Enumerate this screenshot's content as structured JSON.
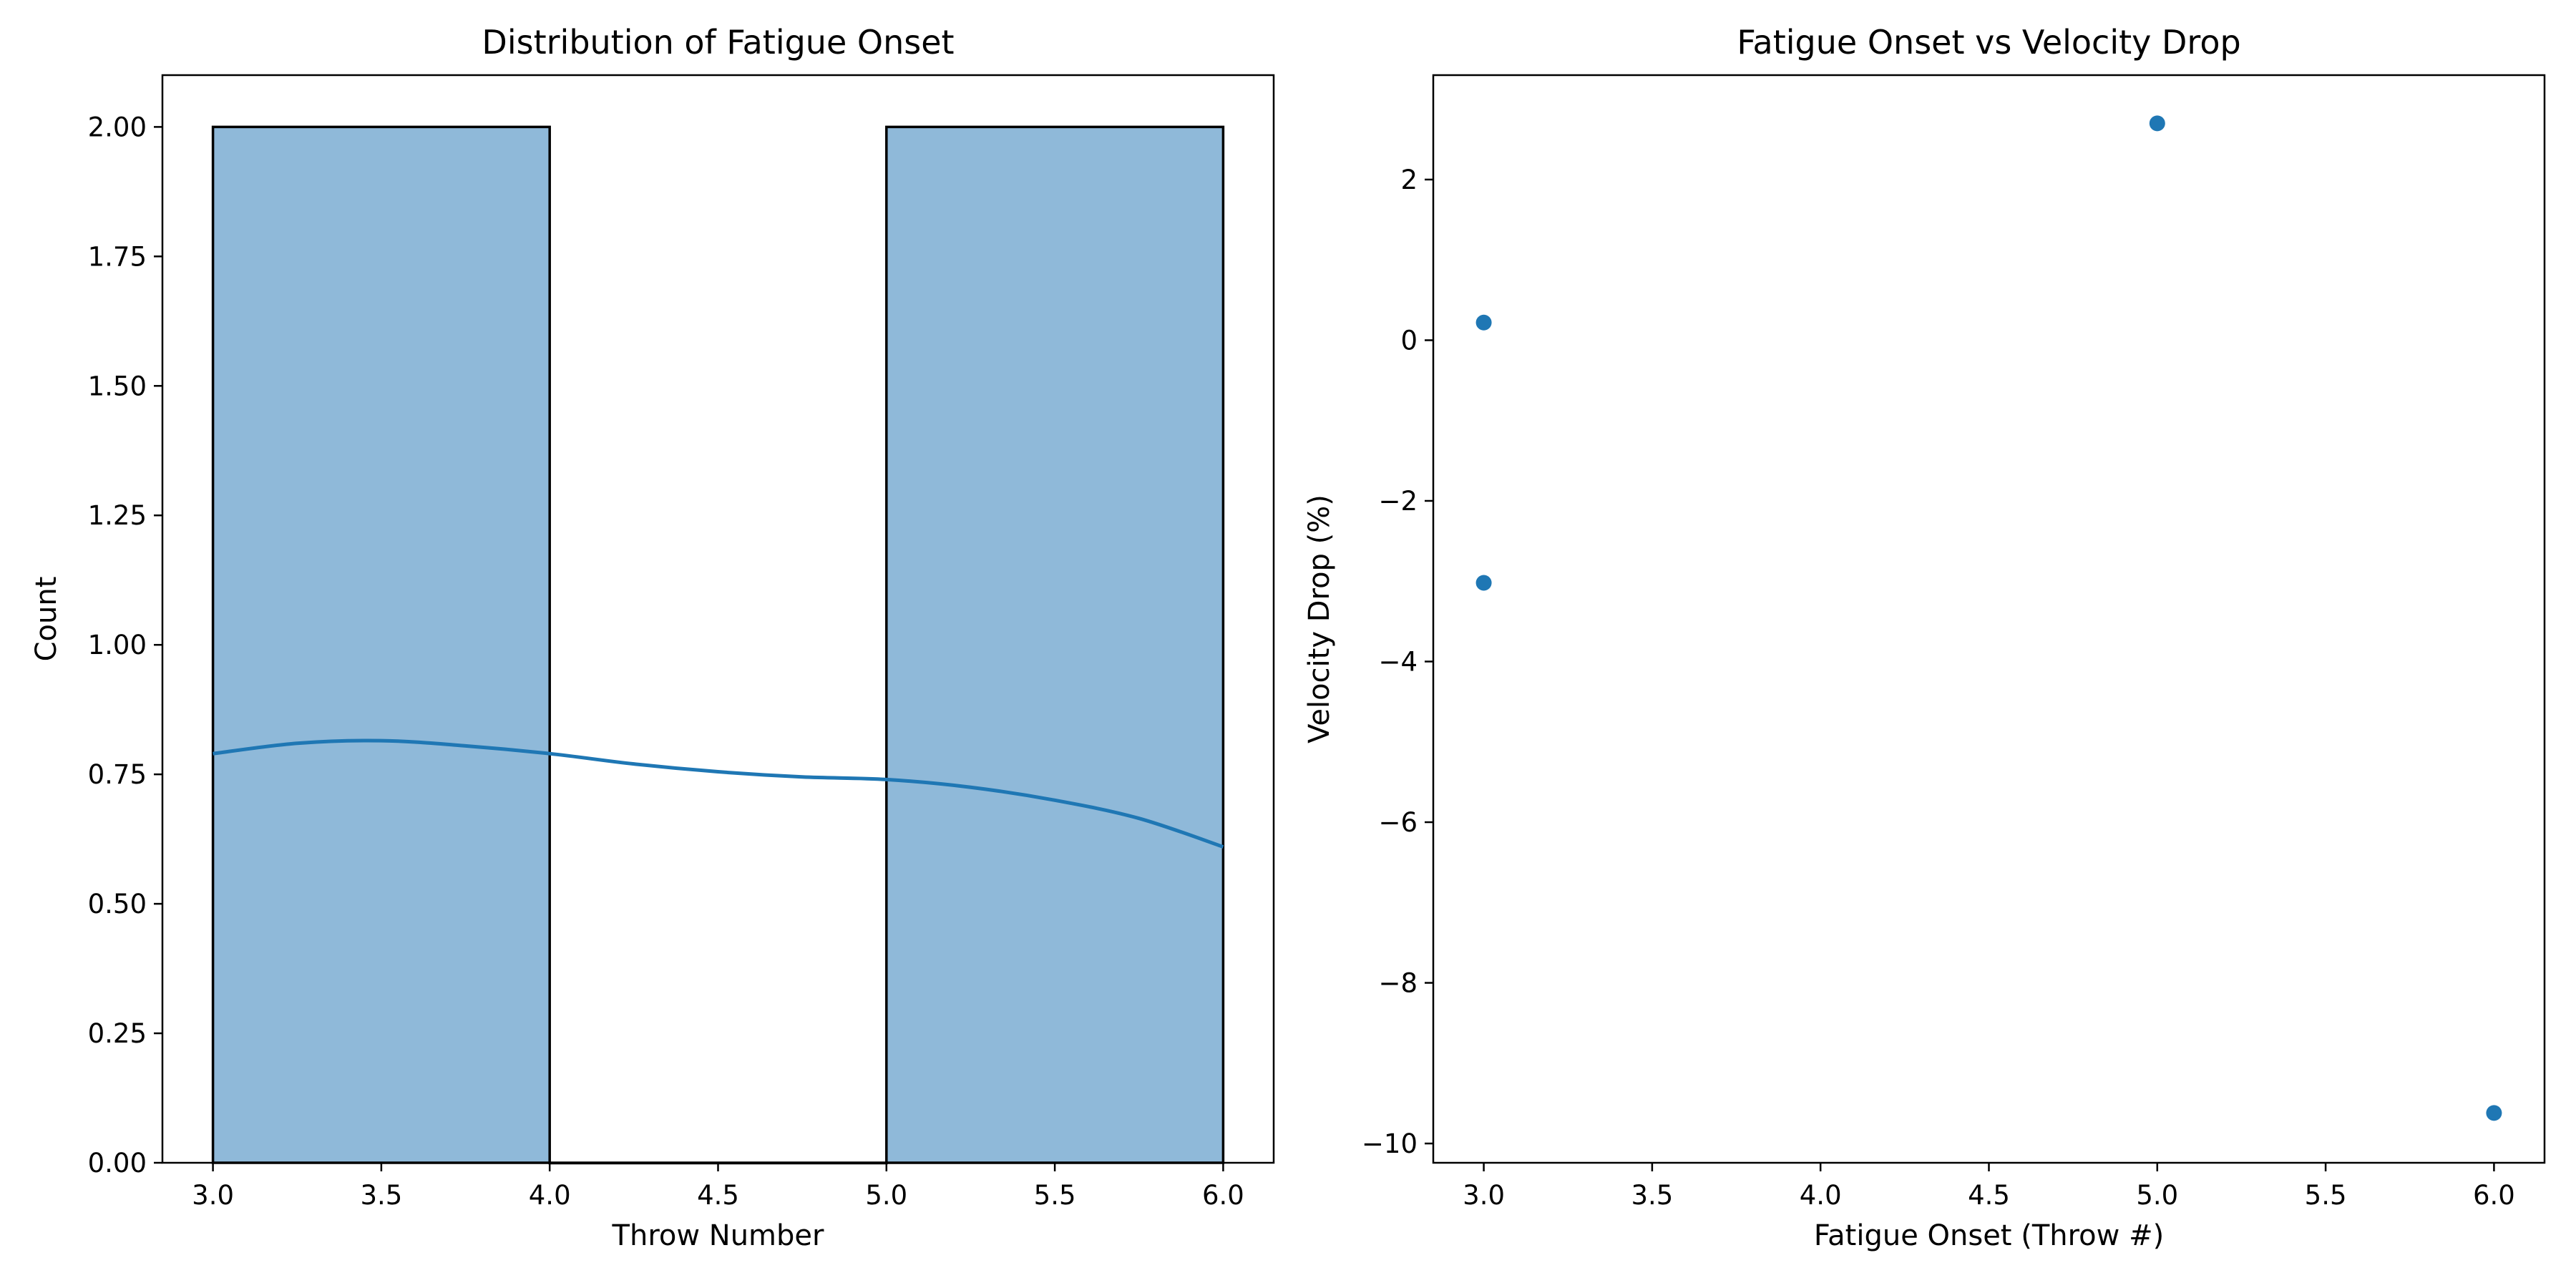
{
  "chart_data": [
    {
      "type": "bar",
      "title": "Distribution of Fatigue Onset",
      "xlabel": "Throw Number",
      "ylabel": "Count",
      "xlim": [
        2.85,
        6.15
      ],
      "ylim": [
        0,
        2.1
      ],
      "x_ticks": [
        "3.0",
        "3.5",
        "4.0",
        "4.5",
        "5.0",
        "5.5",
        "6.0"
      ],
      "y_ticks": [
        "0.00",
        "0.25",
        "0.50",
        "0.75",
        "1.00",
        "1.25",
        "1.50",
        "1.75",
        "2.00"
      ],
      "bins": [
        {
          "x0": 3.0,
          "x1": 4.0,
          "count": 2
        },
        {
          "x0": 4.0,
          "x1": 5.0,
          "count": 0
        },
        {
          "x0": 5.0,
          "x1": 6.0,
          "count": 2
        }
      ],
      "kde": {
        "x": [
          3.0,
          3.25,
          3.5,
          3.75,
          4.0,
          4.25,
          4.5,
          4.75,
          5.0,
          5.25,
          5.5,
          5.75,
          6.0
        ],
        "y": [
          0.79,
          0.81,
          0.815,
          0.805,
          0.79,
          0.77,
          0.755,
          0.745,
          0.74,
          0.725,
          0.7,
          0.665,
          0.61
        ]
      },
      "bar_fill": "#8fb9d9",
      "line_color": "#1f77b4",
      "grid": false
    },
    {
      "type": "scatter",
      "title": "Fatigue Onset vs Velocity Drop",
      "xlabel": "Fatigue Onset (Throw #)",
      "ylabel": "Velocity Drop (%)",
      "xlim": [
        2.85,
        6.15
      ],
      "ylim": [
        -10.24,
        3.3
      ],
      "x_ticks": [
        "3.0",
        "3.5",
        "4.0",
        "4.5",
        "5.0",
        "5.5",
        "6.0"
      ],
      "y_ticks": [
        "−10",
        "−8",
        "−6",
        "−4",
        "−2",
        "0",
        "2"
      ],
      "points": [
        {
          "x": 3.0,
          "y": 0.22
        },
        {
          "x": 3.0,
          "y": -3.02
        },
        {
          "x": 5.0,
          "y": 2.7
        },
        {
          "x": 6.0,
          "y": -9.62
        }
      ],
      "marker_color": "#1f77b4",
      "grid": false
    }
  ]
}
